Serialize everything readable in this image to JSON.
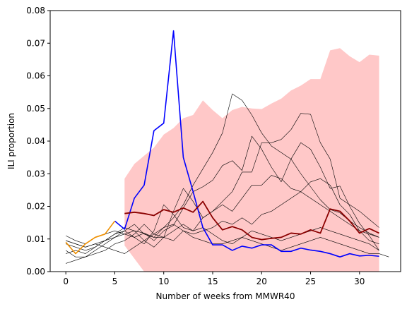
{
  "chart_data": {
    "type": "line",
    "xlabel": "Number of weeks from MMWR40",
    "ylabel": "ILI proportion",
    "xlim": [
      -1.6,
      34.2
    ],
    "ylim": [
      0,
      0.08
    ],
    "xticks": [
      0,
      5,
      10,
      15,
      20,
      25,
      30
    ],
    "yticks": [
      0.0,
      0.01,
      0.02,
      0.03,
      0.04,
      0.05,
      0.06,
      0.07,
      0.08
    ],
    "band": {
      "color": "#ffc8c8",
      "x": [
        6,
        7,
        8,
        9,
        10,
        11,
        12,
        13,
        14,
        15,
        16,
        17,
        18,
        19,
        20,
        21,
        22,
        23,
        24,
        25,
        26,
        27,
        28,
        29,
        30,
        31,
        32
      ],
      "upper": [
        0.0285,
        0.033,
        0.0355,
        0.038,
        0.042,
        0.044,
        0.047,
        0.048,
        0.0525,
        0.0495,
        0.047,
        0.0495,
        0.0505,
        0.05,
        0.0498,
        0.0515,
        0.053,
        0.0555,
        0.057,
        0.059,
        0.059,
        0.0678,
        0.0685,
        0.066,
        0.0642,
        0.0665,
        0.0662
      ],
      "lower": [
        0.008,
        0.004,
        0,
        0,
        0,
        0,
        0,
        0,
        0,
        0,
        0,
        0,
        0,
        0,
        0,
        0,
        0,
        0,
        0,
        0,
        0,
        0,
        0,
        0,
        0,
        0,
        0
      ]
    },
    "past_seasons": [
      {
        "color": "#000000",
        "x": [
          0,
          1,
          2,
          3,
          4,
          5,
          6,
          7,
          8,
          9,
          10,
          11,
          12,
          13,
          14,
          15,
          16,
          17,
          18,
          19,
          20,
          21,
          22,
          23,
          24,
          25,
          26,
          27,
          28,
          29,
          30,
          31,
          32
        ],
        "values": [
          0.011,
          0.0095,
          0.0085,
          0.0105,
          0.0115,
          0.0125,
          0.0115,
          0.0105,
          0.0118,
          0.0095,
          0.0125,
          0.0142,
          0.0195,
          0.0245,
          0.026,
          0.028,
          0.0325,
          0.034,
          0.031,
          0.0415,
          0.0375,
          0.032,
          0.0275,
          0.0345,
          0.0395,
          0.0375,
          0.032,
          0.0255,
          0.0262,
          0.02,
          0.0148,
          0.011,
          0.0065
        ]
      },
      {
        "color": "#000000",
        "x": [
          0,
          1,
          2,
          3,
          4,
          5,
          6,
          7,
          8,
          9,
          10,
          11,
          12,
          13,
          14,
          15,
          16,
          17,
          18,
          19,
          20,
          21,
          22,
          23,
          24,
          25,
          26,
          27,
          28,
          29,
          30,
          31,
          32
        ],
        "values": [
          0.0025,
          0.0035,
          0.0045,
          0.0065,
          0.0085,
          0.0105,
          0.0125,
          0.0145,
          0.0115,
          0.0105,
          0.0135,
          0.0165,
          0.0205,
          0.0265,
          0.0315,
          0.0365,
          0.0425,
          0.0545,
          0.0525,
          0.048,
          0.0425,
          0.0385,
          0.0365,
          0.0345,
          0.03,
          0.026,
          0.022,
          0.019,
          0.018,
          0.0155,
          0.0135,
          0.0118,
          0.0105
        ]
      },
      {
        "color": "#000000",
        "x": [
          0,
          1,
          2,
          3,
          4,
          5,
          6,
          7,
          8,
          9,
          10,
          11,
          12,
          13,
          14,
          15,
          16,
          17,
          18,
          19,
          20,
          21,
          22,
          23,
          24,
          25,
          26,
          27,
          28,
          29,
          30,
          31,
          32
        ],
        "values": [
          0.0085,
          0.0075,
          0.0065,
          0.0075,
          0.0095,
          0.0115,
          0.0135,
          0.0125,
          0.0095,
          0.0075,
          0.0105,
          0.0185,
          0.0255,
          0.0215,
          0.0165,
          0.0185,
          0.0215,
          0.0245,
          0.0305,
          0.0305,
          0.0395,
          0.0395,
          0.0405,
          0.0435,
          0.0485,
          0.0482,
          0.0395,
          0.0345,
          0.0225,
          0.0205,
          0.0185,
          0.016,
          0.0135
        ]
      },
      {
        "color": "#000000",
        "x": [
          0,
          1,
          2,
          3,
          4,
          5,
          6,
          7,
          8,
          9,
          10,
          11,
          12,
          13,
          14,
          15,
          16,
          17,
          18,
          19,
          20,
          21,
          22,
          23,
          24,
          25,
          26,
          27,
          28,
          29,
          30,
          31,
          32
        ],
        "values": [
          0.0095,
          0.0085,
          0.0075,
          0.0085,
          0.0095,
          0.0105,
          0.0115,
          0.0125,
          0.0118,
          0.0105,
          0.0105,
          0.0125,
          0.0145,
          0.0125,
          0.0165,
          0.0185,
          0.0205,
          0.0185,
          0.0225,
          0.0265,
          0.0265,
          0.0295,
          0.0285,
          0.0255,
          0.0245,
          0.0275,
          0.0285,
          0.0265,
          0.0205,
          0.0175,
          0.0125,
          0.0095,
          0.0085
        ]
      },
      {
        "color": "#000000",
        "x": [
          0,
          1,
          2,
          3,
          4,
          5,
          6,
          7,
          8,
          9,
          10,
          11,
          12,
          13,
          14,
          15,
          16,
          17,
          18,
          19,
          20,
          21,
          22,
          23,
          24,
          25,
          26,
          27,
          28,
          29,
          30,
          31,
          32
        ],
        "values": [
          0.0065,
          0.0045,
          0.0045,
          0.0055,
          0.0065,
          0.0085,
          0.0095,
          0.0115,
          0.0145,
          0.0115,
          0.0135,
          0.0145,
          0.0125,
          0.0115,
          0.0125,
          0.0135,
          0.0155,
          0.0145,
          0.0165,
          0.0145,
          0.0175,
          0.0185,
          0.0205,
          0.0225,
          0.0245,
          0.0225,
          0.0205,
          0.0185,
          0.0165,
          0.0145,
          0.0125,
          0.0115,
          0.0105
        ]
      },
      {
        "color": "#000000",
        "x": [
          0,
          1,
          2,
          3,
          4,
          5,
          6,
          7,
          8,
          9,
          10,
          11,
          12,
          13,
          14,
          15,
          16,
          17,
          18,
          19,
          20,
          21,
          22,
          23,
          24,
          25,
          26,
          27,
          28,
          29,
          30,
          31,
          32,
          33
        ],
        "values": [
          0.0095,
          0.0085,
          0.0075,
          0.0085,
          0.0075,
          0.0065,
          0.0055,
          0.0075,
          0.0095,
          0.0115,
          0.0105,
          0.0095,
          0.0125,
          0.0105,
          0.0095,
          0.0085,
          0.0085,
          0.0095,
          0.0105,
          0.0095,
          0.0085,
          0.0075,
          0.0065,
          0.0075,
          0.0085,
          0.0095,
          0.0105,
          0.0095,
          0.0085,
          0.0075,
          0.0065,
          0.0055,
          0.0055,
          0.0045
        ]
      },
      {
        "color": "#000000",
        "x": [
          0,
          1,
          2,
          3,
          4,
          5,
          6,
          7,
          8,
          9,
          10,
          11,
          12,
          13,
          14,
          15,
          16,
          17,
          18,
          19,
          20,
          21,
          22,
          23,
          24,
          25,
          26,
          27,
          28,
          29,
          30,
          31,
          32
        ],
        "values": [
          0.0055,
          0.0065,
          0.0055,
          0.0075,
          0.0095,
          0.0115,
          0.0125,
          0.0105,
          0.0085,
          0.0125,
          0.0205,
          0.0175,
          0.0135,
          0.0125,
          0.0135,
          0.0115,
          0.0095,
          0.0085,
          0.0105,
          0.0125,
          0.0115,
          0.0105,
          0.0095,
          0.0105,
          0.0115,
          0.0125,
          0.0135,
          0.0125,
          0.0115,
          0.0105,
          0.0095,
          0.0085,
          0.0065
        ]
      }
    ],
    "past_season_width": 0.6,
    "highlights": [
      {
        "color": "#0000ff",
        "width": 1.6,
        "x": [
          5,
          6,
          7,
          8,
          9,
          10,
          11,
          12,
          13,
          14,
          15,
          16,
          17,
          18,
          19,
          20,
          21,
          22,
          23,
          24,
          25,
          26,
          27,
          28,
          29,
          30,
          31,
          32
        ],
        "values": [
          0.0155,
          0.013,
          0.0225,
          0.0265,
          0.0432,
          0.0455,
          0.0738,
          0.035,
          0.0245,
          0.0135,
          0.0082,
          0.0082,
          0.0065,
          0.0078,
          0.0072,
          0.0082,
          0.0082,
          0.0062,
          0.0062,
          0.0072,
          0.0066,
          0.0062,
          0.0055,
          0.0045,
          0.0055,
          0.0048,
          0.005,
          0.0047
        ]
      },
      {
        "color": "#ee8f00",
        "width": 1.6,
        "x": [
          0,
          1,
          2,
          3,
          4,
          5
        ],
        "values": [
          0.009,
          0.0055,
          0.0085,
          0.0105,
          0.0115,
          0.0155
        ]
      },
      {
        "color": "#8b0000",
        "width": 1.8,
        "x": [
          6,
          7,
          8,
          9,
          10,
          11,
          12,
          13,
          14,
          15,
          16,
          17,
          18,
          19,
          20,
          21,
          22,
          23,
          24,
          25,
          26,
          27,
          28,
          29,
          30,
          31,
          32
        ],
        "values": [
          0.0178,
          0.0182,
          0.0178,
          0.0172,
          0.019,
          0.0182,
          0.0195,
          0.0182,
          0.0215,
          0.0165,
          0.0128,
          0.0138,
          0.0128,
          0.0105,
          0.0098,
          0.0102,
          0.0105,
          0.0118,
          0.0115,
          0.0128,
          0.0118,
          0.0192,
          0.0185,
          0.0155,
          0.0118,
          0.0132,
          0.0118
        ]
      }
    ]
  }
}
